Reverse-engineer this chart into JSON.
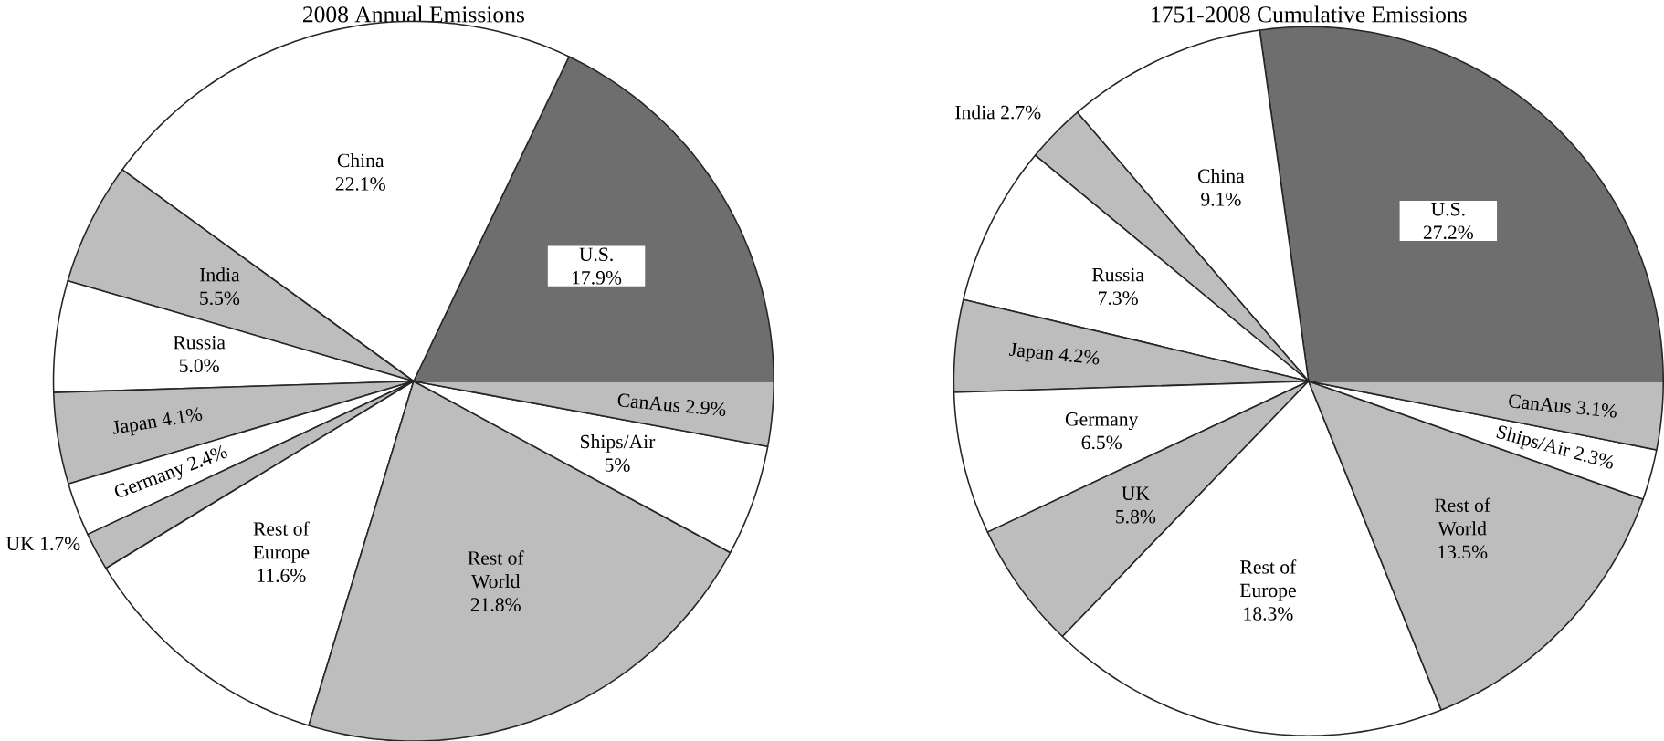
{
  "chart_data": [
    {
      "type": "pie",
      "title": "2008 Annual Emissions",
      "categories": [
        "U.S.",
        "China",
        "India",
        "Russia",
        "Japan",
        "Germany",
        "UK",
        "Rest of Europe",
        "Rest of World",
        "Ships/Air",
        "CanAus"
      ],
      "values": [
        17.9,
        22.1,
        5.5,
        5.0,
        4.1,
        2.4,
        1.7,
        11.6,
        21.8,
        5,
        2.9
      ],
      "value_labels": [
        "17.9%",
        "22.1%",
        "5.5%",
        "5.0%",
        "4.1%",
        "2.4%",
        "1.7%",
        "11.6%",
        "21.8%",
        "5%",
        "2.9%"
      ],
      "colors": [
        "#6e6e6e",
        "#ffffff",
        "#bdbdbd",
        "#ffffff",
        "#bdbdbd",
        "#ffffff",
        "#bdbdbd",
        "#ffffff",
        "#bdbdbd",
        "#ffffff",
        "#bdbdbd"
      ]
    },
    {
      "type": "pie",
      "title": "1751-2008 Cumulative Emissions",
      "categories": [
        "U.S.",
        "China",
        "India",
        "Russia",
        "Japan",
        "Germany",
        "UK",
        "Rest of Europe",
        "Rest of World",
        "Ships/Air",
        "CanAus"
      ],
      "values": [
        27.2,
        9.1,
        2.7,
        7.3,
        4.2,
        6.5,
        5.8,
        18.3,
        13.5,
        2.3,
        3.1
      ],
      "value_labels": [
        "27.2%",
        "9.1%",
        "2.7%",
        "7.3%",
        "4.2%",
        "6.5%",
        "5.8%",
        "18.3%",
        "13.5%",
        "2.3%",
        "3.1%"
      ],
      "colors": [
        "#6e6e6e",
        "#ffffff",
        "#bdbdbd",
        "#ffffff",
        "#bdbdbd",
        "#ffffff",
        "#bdbdbd",
        "#ffffff",
        "#bdbdbd",
        "#ffffff",
        "#bdbdbd"
      ]
    }
  ]
}
